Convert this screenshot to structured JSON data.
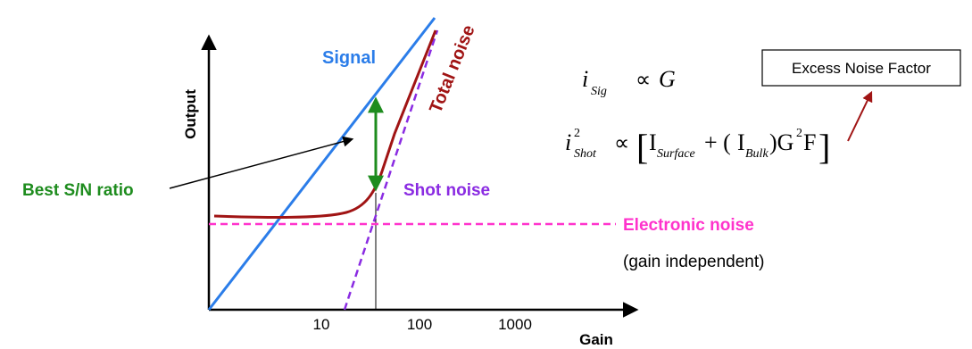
{
  "axes": {
    "x_label": "Gain",
    "y_label": "Output",
    "x_ticks": [
      "10",
      "100",
      "1000"
    ]
  },
  "curves": {
    "signal_label": "Signal",
    "total_noise_label": "Total noise",
    "shot_noise_label": "Shot noise",
    "electronic_noise_label": "Electronic noise",
    "electronic_noise_note": "(gain independent)"
  },
  "annotations": {
    "best_sn_label": "Best S/N ratio",
    "excess_noise_box": "Excess Noise Factor"
  },
  "equations": {
    "sig_i": "i",
    "sig_sub": "Sig",
    "sig_prop": "∝",
    "sig_rhs": "G",
    "shot_i": "i",
    "shot_sup": "2",
    "shot_sub": "Shot",
    "shot_prop": "∝",
    "shot_bracket_open": "[",
    "shot_I1": "I",
    "shot_I1_sub": "Surface",
    "shot_plus": "+ (",
    "shot_I2": "I",
    "shot_I2_sub": "Bulk",
    "shot_close": ")G",
    "shot_G_sup": "2",
    "shot_F": "F",
    "shot_bracket_close": "]"
  },
  "colors": {
    "signal": "#2b7de9",
    "total_noise": "#a01414",
    "shot_noise": "#8a2be2",
    "electronic_noise": "#ff33cc",
    "best_sn": "#1e8c1e",
    "axis": "#000000"
  }
}
